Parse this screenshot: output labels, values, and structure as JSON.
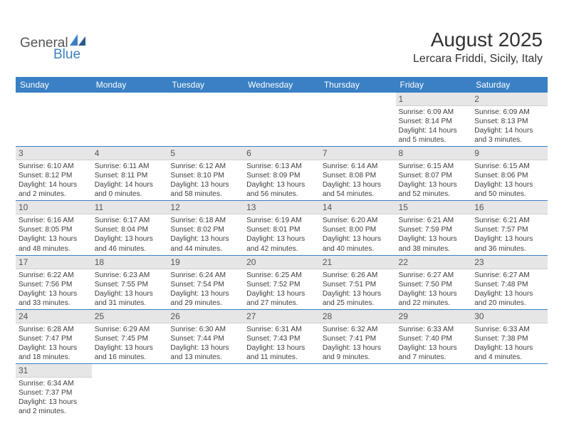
{
  "logo": {
    "text1": "General",
    "text2": "Blue"
  },
  "header": {
    "month": "August 2025",
    "location": "Lercara Friddi, Sicily, Italy"
  },
  "colors": {
    "brand": "#3a80c4",
    "header_bg": "#3a80c4",
    "header_text": "#ffffff",
    "daynum_bg": "#e6e6e6",
    "text": "#404040"
  },
  "daynames": [
    "Sunday",
    "Monday",
    "Tuesday",
    "Wednesday",
    "Thursday",
    "Friday",
    "Saturday"
  ],
  "weeks": [
    [
      null,
      null,
      null,
      null,
      null,
      {
        "n": "1",
        "sr": "Sunrise: 6:09 AM",
        "ss": "Sunset: 8:14 PM",
        "dl": "Daylight: 14 hours and 5 minutes."
      },
      {
        "n": "2",
        "sr": "Sunrise: 6:09 AM",
        "ss": "Sunset: 8:13 PM",
        "dl": "Daylight: 14 hours and 3 minutes."
      }
    ],
    [
      {
        "n": "3",
        "sr": "Sunrise: 6:10 AM",
        "ss": "Sunset: 8:12 PM",
        "dl": "Daylight: 14 hours and 2 minutes."
      },
      {
        "n": "4",
        "sr": "Sunrise: 6:11 AM",
        "ss": "Sunset: 8:11 PM",
        "dl": "Daylight: 14 hours and 0 minutes."
      },
      {
        "n": "5",
        "sr": "Sunrise: 6:12 AM",
        "ss": "Sunset: 8:10 PM",
        "dl": "Daylight: 13 hours and 58 minutes."
      },
      {
        "n": "6",
        "sr": "Sunrise: 6:13 AM",
        "ss": "Sunset: 8:09 PM",
        "dl": "Daylight: 13 hours and 56 minutes."
      },
      {
        "n": "7",
        "sr": "Sunrise: 6:14 AM",
        "ss": "Sunset: 8:08 PM",
        "dl": "Daylight: 13 hours and 54 minutes."
      },
      {
        "n": "8",
        "sr": "Sunrise: 6:15 AM",
        "ss": "Sunset: 8:07 PM",
        "dl": "Daylight: 13 hours and 52 minutes."
      },
      {
        "n": "9",
        "sr": "Sunrise: 6:15 AM",
        "ss": "Sunset: 8:06 PM",
        "dl": "Daylight: 13 hours and 50 minutes."
      }
    ],
    [
      {
        "n": "10",
        "sr": "Sunrise: 6:16 AM",
        "ss": "Sunset: 8:05 PM",
        "dl": "Daylight: 13 hours and 48 minutes."
      },
      {
        "n": "11",
        "sr": "Sunrise: 6:17 AM",
        "ss": "Sunset: 8:04 PM",
        "dl": "Daylight: 13 hours and 46 minutes."
      },
      {
        "n": "12",
        "sr": "Sunrise: 6:18 AM",
        "ss": "Sunset: 8:02 PM",
        "dl": "Daylight: 13 hours and 44 minutes."
      },
      {
        "n": "13",
        "sr": "Sunrise: 6:19 AM",
        "ss": "Sunset: 8:01 PM",
        "dl": "Daylight: 13 hours and 42 minutes."
      },
      {
        "n": "14",
        "sr": "Sunrise: 6:20 AM",
        "ss": "Sunset: 8:00 PM",
        "dl": "Daylight: 13 hours and 40 minutes."
      },
      {
        "n": "15",
        "sr": "Sunrise: 6:21 AM",
        "ss": "Sunset: 7:59 PM",
        "dl": "Daylight: 13 hours and 38 minutes."
      },
      {
        "n": "16",
        "sr": "Sunrise: 6:21 AM",
        "ss": "Sunset: 7:57 PM",
        "dl": "Daylight: 13 hours and 36 minutes."
      }
    ],
    [
      {
        "n": "17",
        "sr": "Sunrise: 6:22 AM",
        "ss": "Sunset: 7:56 PM",
        "dl": "Daylight: 13 hours and 33 minutes."
      },
      {
        "n": "18",
        "sr": "Sunrise: 6:23 AM",
        "ss": "Sunset: 7:55 PM",
        "dl": "Daylight: 13 hours and 31 minutes."
      },
      {
        "n": "19",
        "sr": "Sunrise: 6:24 AM",
        "ss": "Sunset: 7:54 PM",
        "dl": "Daylight: 13 hours and 29 minutes."
      },
      {
        "n": "20",
        "sr": "Sunrise: 6:25 AM",
        "ss": "Sunset: 7:52 PM",
        "dl": "Daylight: 13 hours and 27 minutes."
      },
      {
        "n": "21",
        "sr": "Sunrise: 6:26 AM",
        "ss": "Sunset: 7:51 PM",
        "dl": "Daylight: 13 hours and 25 minutes."
      },
      {
        "n": "22",
        "sr": "Sunrise: 6:27 AM",
        "ss": "Sunset: 7:50 PM",
        "dl": "Daylight: 13 hours and 22 minutes."
      },
      {
        "n": "23",
        "sr": "Sunrise: 6:27 AM",
        "ss": "Sunset: 7:48 PM",
        "dl": "Daylight: 13 hours and 20 minutes."
      }
    ],
    [
      {
        "n": "24",
        "sr": "Sunrise: 6:28 AM",
        "ss": "Sunset: 7:47 PM",
        "dl": "Daylight: 13 hours and 18 minutes."
      },
      {
        "n": "25",
        "sr": "Sunrise: 6:29 AM",
        "ss": "Sunset: 7:45 PM",
        "dl": "Daylight: 13 hours and 16 minutes."
      },
      {
        "n": "26",
        "sr": "Sunrise: 6:30 AM",
        "ss": "Sunset: 7:44 PM",
        "dl": "Daylight: 13 hours and 13 minutes."
      },
      {
        "n": "27",
        "sr": "Sunrise: 6:31 AM",
        "ss": "Sunset: 7:43 PM",
        "dl": "Daylight: 13 hours and 11 minutes."
      },
      {
        "n": "28",
        "sr": "Sunrise: 6:32 AM",
        "ss": "Sunset: 7:41 PM",
        "dl": "Daylight: 13 hours and 9 minutes."
      },
      {
        "n": "29",
        "sr": "Sunrise: 6:33 AM",
        "ss": "Sunset: 7:40 PM",
        "dl": "Daylight: 13 hours and 7 minutes."
      },
      {
        "n": "30",
        "sr": "Sunrise: 6:33 AM",
        "ss": "Sunset: 7:38 PM",
        "dl": "Daylight: 13 hours and 4 minutes."
      }
    ],
    [
      {
        "n": "31",
        "sr": "Sunrise: 6:34 AM",
        "ss": "Sunset: 7:37 PM",
        "dl": "Daylight: 13 hours and 2 minutes."
      },
      null,
      null,
      null,
      null,
      null,
      null
    ]
  ]
}
